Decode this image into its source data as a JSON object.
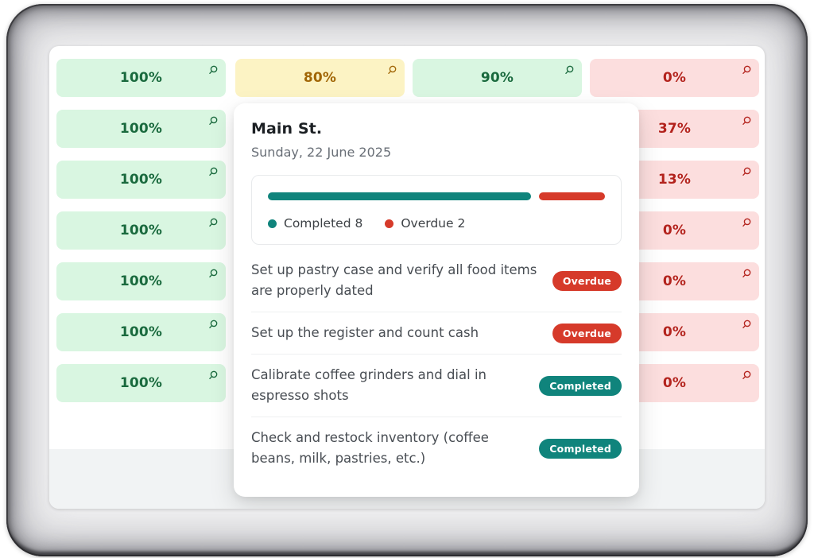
{
  "palette": {
    "green_bg": "#d9f6e1",
    "green_text": "#1a6a3e",
    "yellow_bg": "#fcf3c4",
    "yellow_text": "#a16606",
    "red_bg": "#fcdede",
    "red_text": "#b3231d",
    "teal": "#10847c",
    "red_accent": "#d63a2a",
    "footer_strip": "#f1f3f4"
  },
  "grid": {
    "cell_icon": "magnifier-icon",
    "columns": [
      {
        "id": "column-1",
        "cells": [
          {
            "value": "100%",
            "tone": "green"
          },
          {
            "value": "100%",
            "tone": "green"
          },
          {
            "value": "100%",
            "tone": "green"
          },
          {
            "value": "100%",
            "tone": "green"
          },
          {
            "value": "100%",
            "tone": "green"
          },
          {
            "value": "100%",
            "tone": "green"
          },
          {
            "value": "100%",
            "tone": "green"
          }
        ]
      },
      {
        "id": "column-2",
        "cells": [
          {
            "value": "80%",
            "tone": "yellow"
          }
        ]
      },
      {
        "id": "column-3",
        "cells": [
          {
            "value": "90%",
            "tone": "green"
          }
        ]
      },
      {
        "id": "column-4",
        "cells": [
          {
            "value": "0%",
            "tone": "red"
          },
          {
            "value": "37%",
            "tone": "red"
          },
          {
            "value": "13%",
            "tone": "red"
          },
          {
            "value": "0%",
            "tone": "red"
          },
          {
            "value": "0%",
            "tone": "red"
          },
          {
            "value": "0%",
            "tone": "red"
          },
          {
            "value": "0%",
            "tone": "red"
          }
        ]
      }
    ]
  },
  "popover": {
    "title": "Main St.",
    "date": "Sunday, 22 June 2025",
    "progress": {
      "segments": [
        {
          "name": "Completed",
          "count": 8,
          "color_key": "teal"
        },
        {
          "name": "Overdue",
          "count": 2,
          "color_key": "red_accent"
        }
      ],
      "legend": [
        {
          "label": "Completed 8",
          "color_key": "teal"
        },
        {
          "label": "Overdue 2",
          "color_key": "red_accent"
        }
      ]
    },
    "tasks": [
      {
        "text": "Set up pastry case and verify all food items are properly dated",
        "badge": "Overdue",
        "tone": "overdue"
      },
      {
        "text": "Set up the register and count cash",
        "badge": "Overdue",
        "tone": "overdue"
      },
      {
        "text": "Calibrate coffee grinders and dial in espresso shots",
        "badge": "Completed",
        "tone": "completed"
      },
      {
        "text": "Check and restock inventory (coffee beans, milk, pastries, etc.)",
        "badge": "Completed",
        "tone": "completed"
      }
    ]
  }
}
